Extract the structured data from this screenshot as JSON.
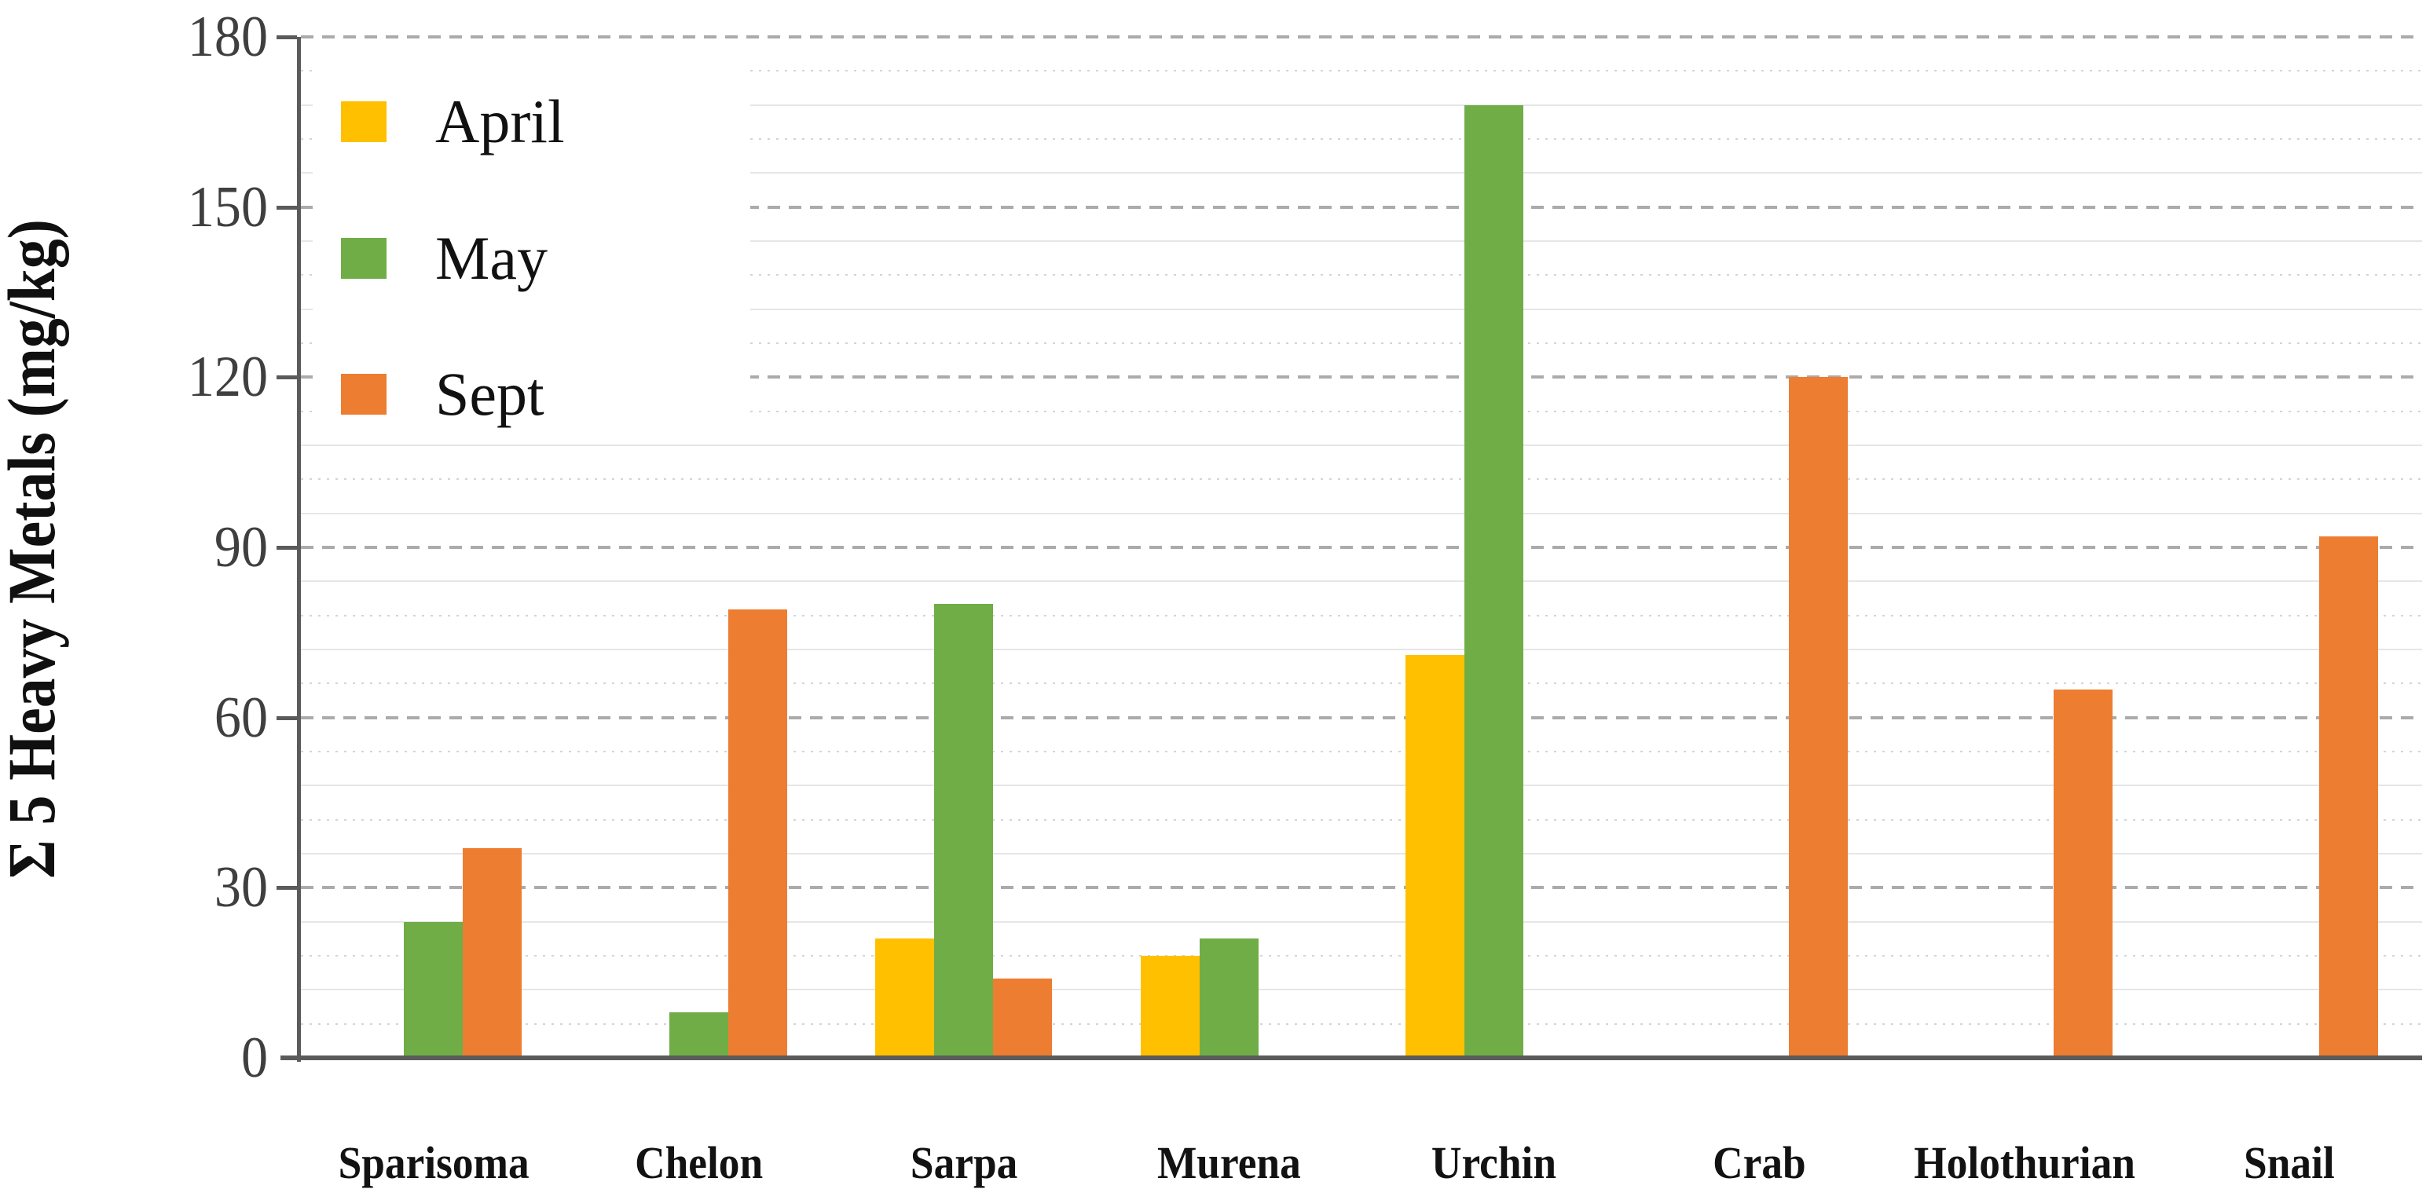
{
  "chart_data": {
    "type": "bar",
    "title": "",
    "ylabel": "Σ 5 Heavy Metals (mg/kg)",
    "xlabel": "",
    "ylim": [
      0,
      180
    ],
    "yticks": [
      0,
      30,
      60,
      90,
      120,
      150,
      180
    ],
    "major_gridline_step": 30,
    "minor_gridline_step": 6,
    "grid": true,
    "legend_position": "top-left",
    "categories": [
      "Sparisoma",
      "Chelon",
      "Sarpa",
      "Murena",
      "Urchin",
      "Crab",
      "Holothurian",
      "Snail"
    ],
    "series": [
      {
        "name": "April",
        "color": "#FFC000",
        "values": [
          0,
          0,
          21,
          18,
          71,
          0,
          0,
          0
        ]
      },
      {
        "name": "May",
        "color": "#70AD47",
        "values": [
          24,
          8,
          80,
          21,
          168,
          0,
          0,
          0
        ]
      },
      {
        "name": "Sept",
        "color": "#ED7D31",
        "values": [
          37,
          79,
          14,
          0,
          0,
          120,
          65,
          92
        ]
      }
    ],
    "axis_color": "#5b5b5b"
  }
}
